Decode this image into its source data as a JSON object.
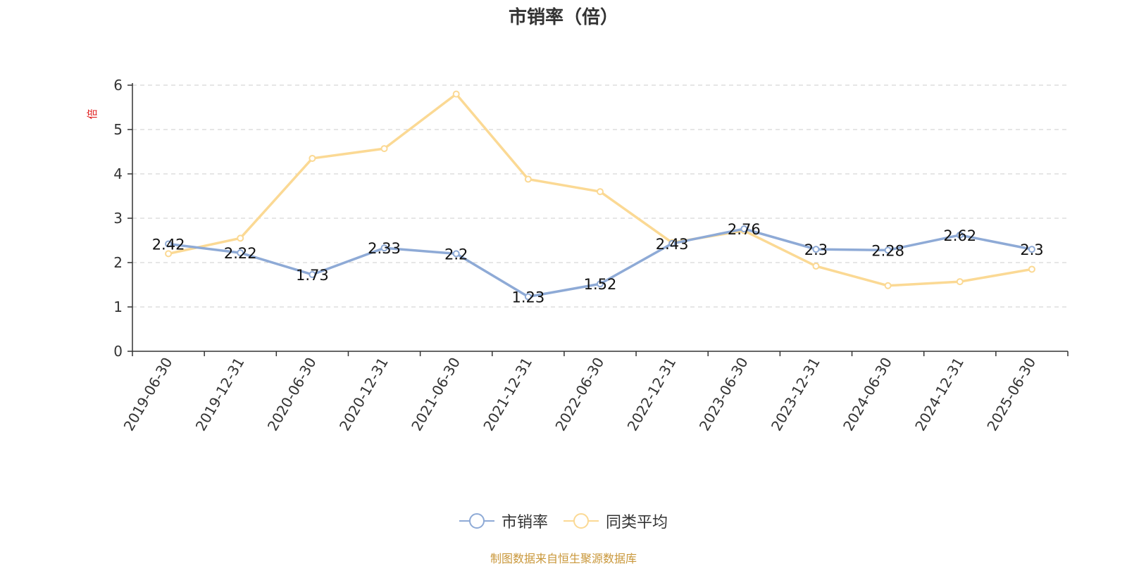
{
  "chart_data": {
    "type": "line",
    "title": "市销率（倍）",
    "ylabel": "倍",
    "xlabel": "",
    "ylim": [
      0,
      6
    ],
    "yticks": [
      0,
      1,
      2,
      3,
      4,
      5,
      6
    ],
    "grid": true,
    "legend_position": "bottom-center",
    "categories": [
      "2019-06-30",
      "2019-12-31",
      "2020-06-30",
      "2020-12-31",
      "2021-06-30",
      "2021-12-31",
      "2022-06-30",
      "2022-12-31",
      "2023-06-30",
      "2023-12-31",
      "2024-06-30",
      "2024-12-31",
      "2025-06-30"
    ],
    "series": [
      {
        "name": "市销率",
        "color": "#8eaad6",
        "values": [
          2.42,
          2.22,
          1.73,
          2.33,
          2.2,
          1.23,
          1.52,
          2.43,
          2.76,
          2.3,
          2.28,
          2.62,
          2.3
        ],
        "labels": [
          "2.42",
          "2.22",
          "1.73",
          "2.33",
          "2.2",
          "1.23",
          "1.52",
          "2.43",
          "2.76",
          "2.3",
          "2.28",
          "2.62",
          "2.3"
        ]
      },
      {
        "name": "同类平均",
        "color": "#fbd994",
        "values": [
          2.2,
          2.55,
          4.35,
          4.57,
          5.8,
          3.88,
          3.6,
          2.45,
          2.72,
          1.92,
          1.48,
          1.57,
          1.85
        ]
      }
    ]
  },
  "legend": {
    "items": [
      {
        "label": "市销率",
        "color": "#8eaad6"
      },
      {
        "label": "同类平均",
        "color": "#fbd994"
      }
    ]
  },
  "source_note": "制图数据来自恒生聚源数据库",
  "colors": {
    "axis": "#333333",
    "grid": "#cccccc",
    "ylabel": "#e02020",
    "source": "#c9973a"
  }
}
